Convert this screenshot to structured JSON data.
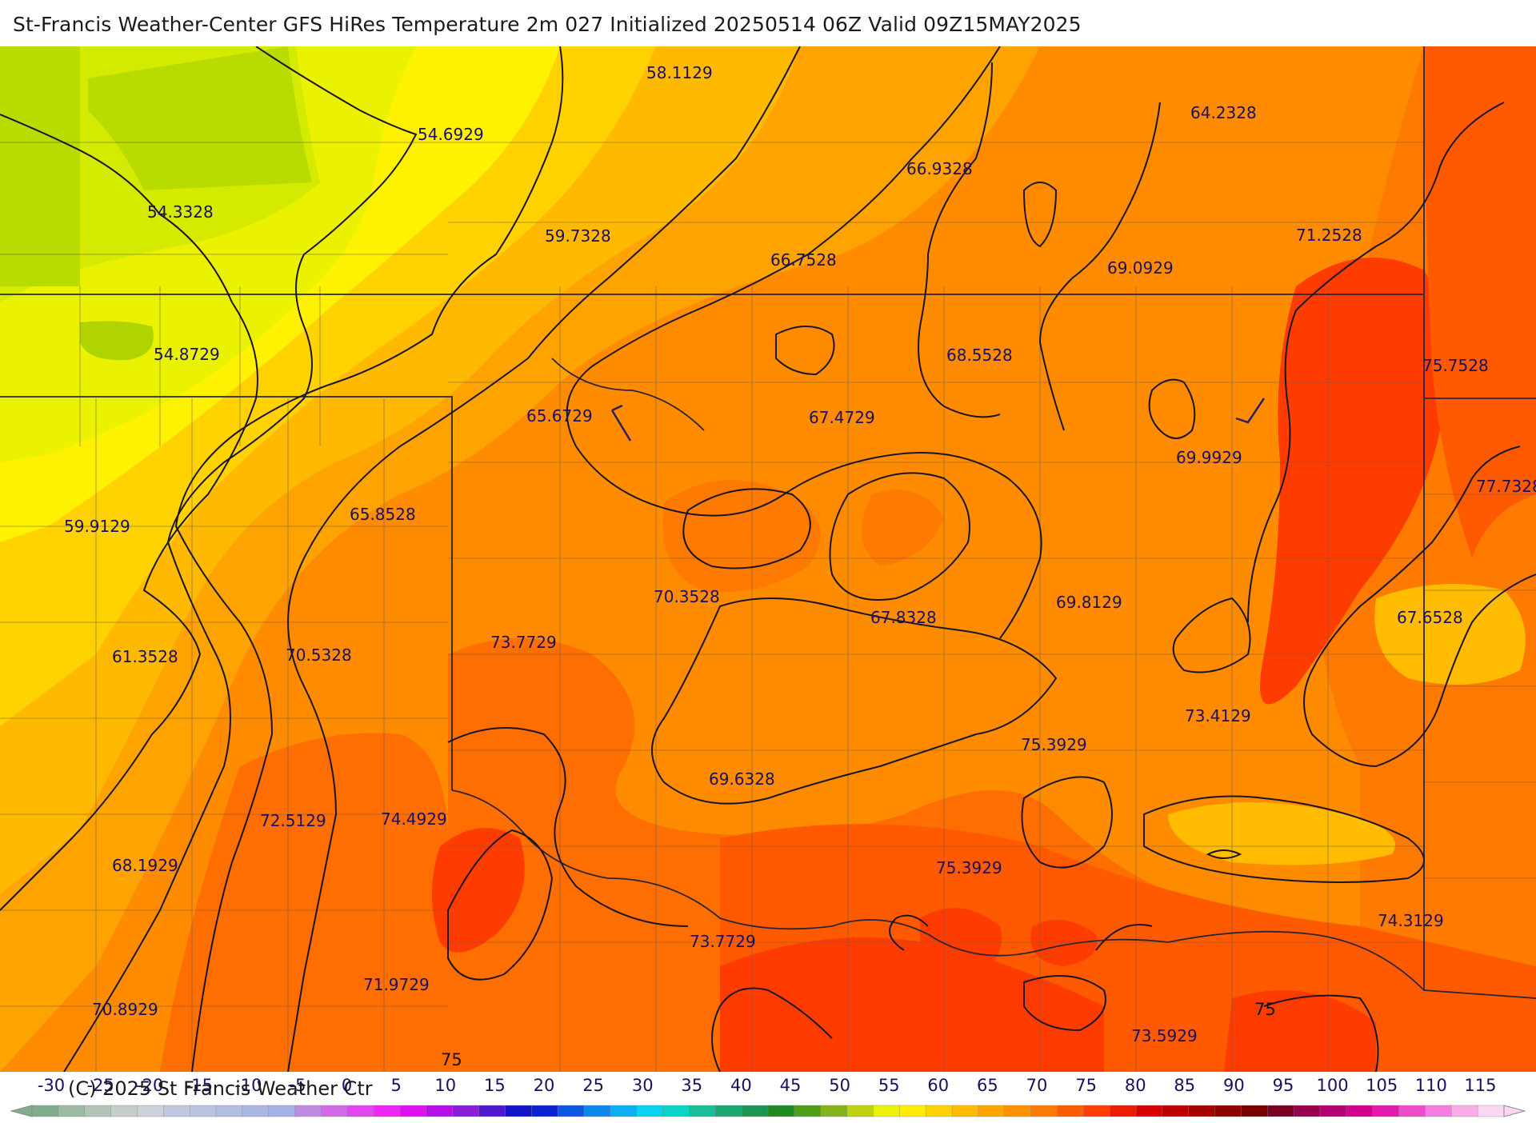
{
  "header": {
    "title": "St-Francis Weather-Center GFS HiRes Temperature 2m  027 Initialized 20250514 06Z Valid 09Z15MAY2025"
  },
  "footer": {
    "copyright": "(C) 2025 St Francis Weather Ctr"
  },
  "map": {
    "value_labels": [
      {
        "id": "v1",
        "text": "58.1129"
      },
      {
        "id": "v2",
        "text": "54.6929"
      },
      {
        "id": "v3",
        "text": "54.3328"
      },
      {
        "id": "v4",
        "text": "59.7328"
      },
      {
        "id": "v5",
        "text": "66.9328"
      },
      {
        "id": "v6",
        "text": "64.2328"
      },
      {
        "id": "v7",
        "text": "66.7528"
      },
      {
        "id": "v8",
        "text": "71.2528"
      },
      {
        "id": "v9",
        "text": "69.0929"
      },
      {
        "id": "v10",
        "text": "54.8729"
      },
      {
        "id": "v11",
        "text": "68.5528"
      },
      {
        "id": "v12",
        "text": "75.7528"
      },
      {
        "id": "v13",
        "text": "65.6729"
      },
      {
        "id": "v14",
        "text": "67.4729"
      },
      {
        "id": "v15",
        "text": "69.9929"
      },
      {
        "id": "v16",
        "text": "77.7328"
      },
      {
        "id": "v17",
        "text": "59.9129"
      },
      {
        "id": "v18",
        "text": "65.8528"
      },
      {
        "id": "v19",
        "text": "70.3528"
      },
      {
        "id": "v20",
        "text": "69.8129"
      },
      {
        "id": "v21",
        "text": "67.8328"
      },
      {
        "id": "v22",
        "text": "67.6528"
      },
      {
        "id": "v23",
        "text": "73.7729"
      },
      {
        "id": "v24",
        "text": "61.3528"
      },
      {
        "id": "v25",
        "text": "70.5328"
      },
      {
        "id": "v26",
        "text": "73.4129"
      },
      {
        "id": "v27",
        "text": "75.3929"
      },
      {
        "id": "v28",
        "text": "69.6328"
      },
      {
        "id": "v29",
        "text": "72.5129"
      },
      {
        "id": "v30",
        "text": "74.4929"
      },
      {
        "id": "v31",
        "text": "68.1929"
      },
      {
        "id": "v32",
        "text": "75.3929"
      },
      {
        "id": "v33",
        "text": "74.3129"
      },
      {
        "id": "v34",
        "text": "73.7729"
      },
      {
        "id": "v35",
        "text": "71.9729"
      },
      {
        "id": "v36",
        "text": "70.8929"
      },
      {
        "id": "v37",
        "text": "73.5929"
      }
    ],
    "contour_labels": [
      {
        "id": "c1",
        "text": "75"
      },
      {
        "id": "c2",
        "text": "75"
      }
    ]
  },
  "colorbar": {
    "ticks": [
      "-30",
      "-25",
      "-20",
      "-15",
      "-10",
      "-5",
      "0",
      "5",
      "10",
      "15",
      "20",
      "25",
      "30",
      "35",
      "40",
      "45",
      "50",
      "55",
      "60",
      "65",
      "70",
      "75",
      "80",
      "85",
      "90",
      "95",
      "100",
      "105",
      "110",
      "115"
    ],
    "colors": [
      "#7fae8c",
      "#9bbba3",
      "#b3c4b6",
      "#c5cdc9",
      "#ccd2dc",
      "#c0c6e0",
      "#b9c2e2",
      "#b2bde2",
      "#aab7e2",
      "#a4b2e3",
      "#c08be0",
      "#d06ae6",
      "#e048ee",
      "#ee25f3",
      "#e00ef1",
      "#b50ee8",
      "#8b1ed9",
      "#4f18d0",
      "#1414c8",
      "#0a22d4",
      "#0d55e3",
      "#0d86ee",
      "#0ab0f2",
      "#0ad3f0",
      "#0ad3c8",
      "#16be9a",
      "#1aa870",
      "#1e9450",
      "#1f8a22",
      "#4e9e18",
      "#84b41a",
      "#bfd20f",
      "#eaf20a",
      "#ffec00",
      "#ffd200",
      "#ffbc00",
      "#ffa700",
      "#ff9100",
      "#ff7a00",
      "#ff5c00",
      "#ff3d00",
      "#ee1b00",
      "#d80000",
      "#c00000",
      "#a80000",
      "#900000",
      "#7a0000",
      "#7a0024",
      "#9a0050",
      "#b40070",
      "#d2008a",
      "#e41ab0",
      "#ef4ccc",
      "#f57ee0",
      "#f9ade9",
      "#fcd7f3"
    ]
  }
}
